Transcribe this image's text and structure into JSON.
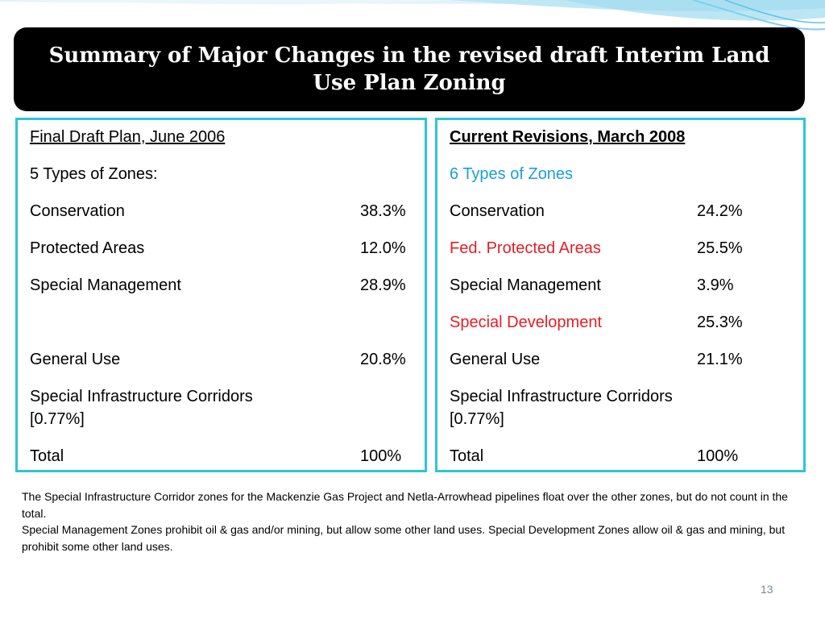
{
  "title": "Summary of Major Changes in the revised draft Interim Land Use Plan Zoning",
  "left": {
    "header": "Final Draft Plan, June 2006",
    "subheader": "5 Types of Zones:",
    "rows": [
      {
        "label": "Conservation",
        "value": "38.3%"
      },
      {
        "label": "Protected Areas",
        "value": "12.0%"
      },
      {
        "label": "Special Management",
        "value": "28.9%"
      },
      {
        "label": "General Use",
        "value": "20.8%"
      },
      {
        "label": "Special Infrastructure Corridors",
        "value": ""
      },
      {
        "label": "[0.77%]",
        "value": ""
      },
      {
        "label": "Total",
        "value": "100%"
      }
    ]
  },
  "right": {
    "header": "Current Revisions, March 2008",
    "subheader": "6 Types of Zones",
    "rows": [
      {
        "label": "Conservation",
        "value": "24.2%"
      },
      {
        "label": "Fed. Protected Areas",
        "value": "25.5%"
      },
      {
        "label": "Special Management",
        "value": "3.9%"
      },
      {
        "label": "Special Development",
        "value": "25.3%"
      },
      {
        "label": "General Use",
        "value": "21.1%"
      },
      {
        "label": "Special Infrastructure Corridors",
        "value": ""
      },
      {
        "label": "[0.77%]",
        "value": ""
      },
      {
        "label": "Total",
        "value": "100%"
      }
    ]
  },
  "footnote": {
    "line1": "The Special Infrastructure Corridor zones for the Mackenzie Gas Project and Netla-Arrowhead pipelines float over the other zones, but do not count in the total.",
    "line2": "Special Management Zones prohibit oil & gas and/or mining, but allow some other land uses. Special Development Zones allow oil & gas and mining, but prohibit some other land uses."
  },
  "page_number": "13",
  "colors": {
    "title_bg": "#000000",
    "panel_border": "#2ec4d8",
    "highlight_red": "#e31e24",
    "highlight_cyan": "#1aa0d6"
  }
}
